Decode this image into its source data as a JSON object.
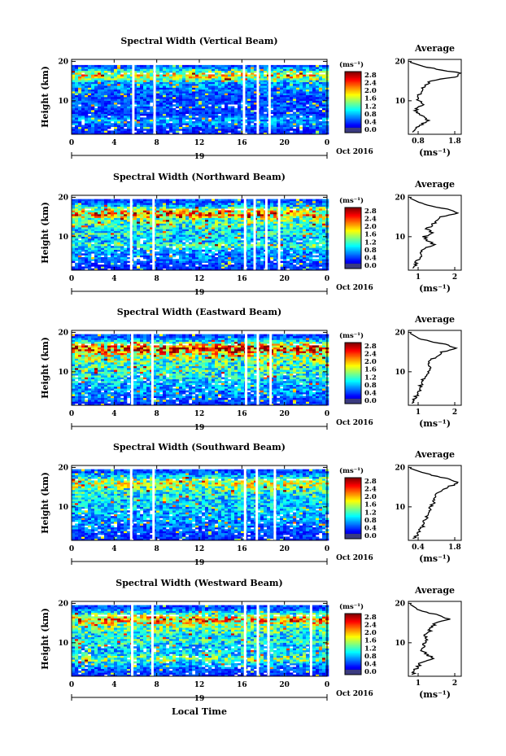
{
  "figure": {
    "time_axis_label": "Local Time",
    "date_label": "Oct 2016",
    "day_label": "19",
    "height_axis_label": "Height (km)",
    "colorbar_unit": "(ms⁻¹)",
    "average_title": "Average",
    "average_unit": "(ms⁻¹)"
  },
  "chart_data": [
    {
      "type": "heatmap",
      "title": "Spectral Width (Vertical Beam)",
      "xlabel": "",
      "ylabel": "Height (km)",
      "x_ticks": [
        "0",
        "4",
        "8",
        "12",
        "16",
        "20",
        "0"
      ],
      "y_ticks": [
        "10",
        "20"
      ],
      "xlim": [
        0,
        24
      ],
      "ylim": [
        1.5,
        20.5
      ],
      "colorbar": {
        "ticks": [
          "0.0",
          "0.4",
          "0.8",
          "1.2",
          "1.6",
          "2.0",
          "2.4",
          "2.8"
        ],
        "range": [
          0,
          3.0
        ]
      },
      "data_gaps_hours": [
        5.8,
        7.8,
        16.2,
        17.5,
        18.6
      ],
      "max_height_km": 19.5,
      "average_profile": {
        "xlim": [
          0.3,
          1.8
        ],
        "x_ticks": [
          "0.8",
          "1.8"
        ],
        "height_km": [
          2,
          3,
          4,
          5,
          6,
          7,
          8,
          9,
          10,
          11,
          12,
          13,
          14,
          15,
          16,
          17,
          18,
          19
        ],
        "value": [
          0.45,
          0.5,
          0.7,
          0.85,
          0.75,
          0.5,
          0.55,
          0.7,
          0.6,
          0.55,
          0.65,
          0.7,
          0.8,
          0.9,
          1.6,
          1.8,
          1.1,
          0.6
        ]
      }
    },
    {
      "type": "heatmap",
      "title": "Spectral Width (Northward Beam)",
      "xlabel": "",
      "ylabel": "Height (km)",
      "x_ticks": [
        "0",
        "4",
        "8",
        "12",
        "16",
        "20",
        "0"
      ],
      "y_ticks": [
        "10",
        "20"
      ],
      "xlim": [
        0,
        24
      ],
      "ylim": [
        1.5,
        20.5
      ],
      "colorbar": {
        "ticks": [
          "0.0",
          "0.4",
          "0.8",
          "1.2",
          "1.6",
          "2.0",
          "2.4",
          "2.8"
        ],
        "range": [
          0,
          3.0
        ]
      },
      "data_gaps_hours": [
        5.6,
        7.7,
        16.3,
        17.2,
        18.3,
        19.5
      ],
      "max_height_km": 20,
      "average_profile": {
        "xlim": [
          0.3,
          2.3
        ],
        "x_ticks": [
          "1",
          "2"
        ],
        "height_km": [
          2,
          3,
          4,
          5,
          6,
          7,
          8,
          9,
          10,
          11,
          12,
          13,
          14,
          15,
          16,
          17,
          18,
          19
        ],
        "value": [
          0.5,
          0.55,
          0.65,
          0.8,
          0.75,
          0.9,
          1.3,
          1.0,
          0.9,
          1.2,
          1.0,
          1.2,
          1.4,
          1.5,
          2.2,
          1.8,
          1.0,
          0.6
        ]
      }
    },
    {
      "type": "heatmap",
      "title": "Spectral Width (Eastward Beam)",
      "xlabel": "",
      "ylabel": "Height (km)",
      "x_ticks": [
        "0",
        "4",
        "8",
        "12",
        "16",
        "20",
        "0"
      ],
      "y_ticks": [
        "10",
        "20"
      ],
      "xlim": [
        0,
        24
      ],
      "ylim": [
        1.5,
        20.5
      ],
      "colorbar": {
        "ticks": [
          "0.0",
          "0.4",
          "0.8",
          "1.2",
          "1.6",
          "2.0",
          "2.4",
          "2.8"
        ],
        "range": [
          0,
          3.0
        ]
      },
      "data_gaps_hours": [
        5.7,
        7.6,
        16.4,
        17.5,
        18.7
      ],
      "max_height_km": 20,
      "average_profile": {
        "xlim": [
          0.3,
          2.8
        ],
        "x_ticks": [
          "1",
          "2"
        ],
        "height_km": [
          2,
          3,
          4,
          5,
          6,
          7,
          8,
          9,
          10,
          11,
          12,
          13,
          14,
          15,
          16,
          17,
          18,
          19
        ],
        "value": [
          0.5,
          0.6,
          0.7,
          0.8,
          0.85,
          0.9,
          1.0,
          1.1,
          1.2,
          1.3,
          1.2,
          1.4,
          1.6,
          1.9,
          2.5,
          2.0,
          1.1,
          0.6
        ]
      }
    },
    {
      "type": "heatmap",
      "title": "Spectral Width (Southward Beam)",
      "xlabel": "",
      "ylabel": "Height (km)",
      "x_ticks": [
        "0",
        "4",
        "8",
        "12",
        "16",
        "20",
        "0"
      ],
      "y_ticks": [
        "10",
        "20"
      ],
      "xlim": [
        0,
        24
      ],
      "ylim": [
        1.5,
        20.5
      ],
      "colorbar": {
        "ticks": [
          "0.0",
          "0.4",
          "0.8",
          "1.2",
          "1.6",
          "2.0",
          "2.4",
          "2.8"
        ],
        "range": [
          0,
          3.0
        ]
      },
      "data_gaps_hours": [
        5.6,
        7.7,
        16.3,
        17.4,
        19.1
      ],
      "max_height_km": 20,
      "average_profile": {
        "xlim": [
          0.3,
          1.8
        ],
        "x_ticks": [
          "0.4",
          "1.8"
        ],
        "height_km": [
          2,
          3,
          4,
          5,
          6,
          7,
          8,
          9,
          10,
          11,
          12,
          13,
          14,
          15,
          16,
          17,
          18,
          19
        ],
        "value": [
          0.45,
          0.55,
          0.6,
          0.7,
          0.75,
          0.8,
          0.85,
          0.9,
          0.95,
          1.0,
          1.05,
          1.1,
          1.2,
          1.4,
          1.7,
          1.5,
          1.0,
          0.6
        ]
      }
    },
    {
      "type": "heatmap",
      "title": "Spectral Width (Westward Beam)",
      "xlabel": "Local Time",
      "ylabel": "Height (km)",
      "x_ticks": [
        "0",
        "4",
        "8",
        "12",
        "16",
        "20",
        "0"
      ],
      "y_ticks": [
        "10",
        "20"
      ],
      "xlim": [
        0,
        24
      ],
      "ylim": [
        1.5,
        20.5
      ],
      "colorbar": {
        "ticks": [
          "0.0",
          "0.4",
          "0.8",
          "1.2",
          "1.6",
          "2.0",
          "2.4",
          "2.8"
        ],
        "range": [
          0,
          3.0
        ]
      },
      "data_gaps_hours": [
        5.7,
        7.6,
        16.3,
        17.5,
        18.5,
        22.5
      ],
      "max_height_km": 20,
      "average_profile": {
        "xlim": [
          0.3,
          2.8
        ],
        "x_ticks": [
          "1",
          "2"
        ],
        "height_km": [
          2,
          3,
          4,
          5,
          6,
          7,
          8,
          9,
          10,
          11,
          12,
          13,
          14,
          15,
          16,
          17,
          18,
          19
        ],
        "value": [
          0.5,
          0.6,
          0.75,
          0.9,
          1.5,
          1.2,
          0.95,
          1.0,
          1.1,
          1.2,
          1.0,
          1.3,
          1.4,
          1.6,
          2.2,
          1.7,
          1.0,
          0.6
        ]
      }
    }
  ]
}
